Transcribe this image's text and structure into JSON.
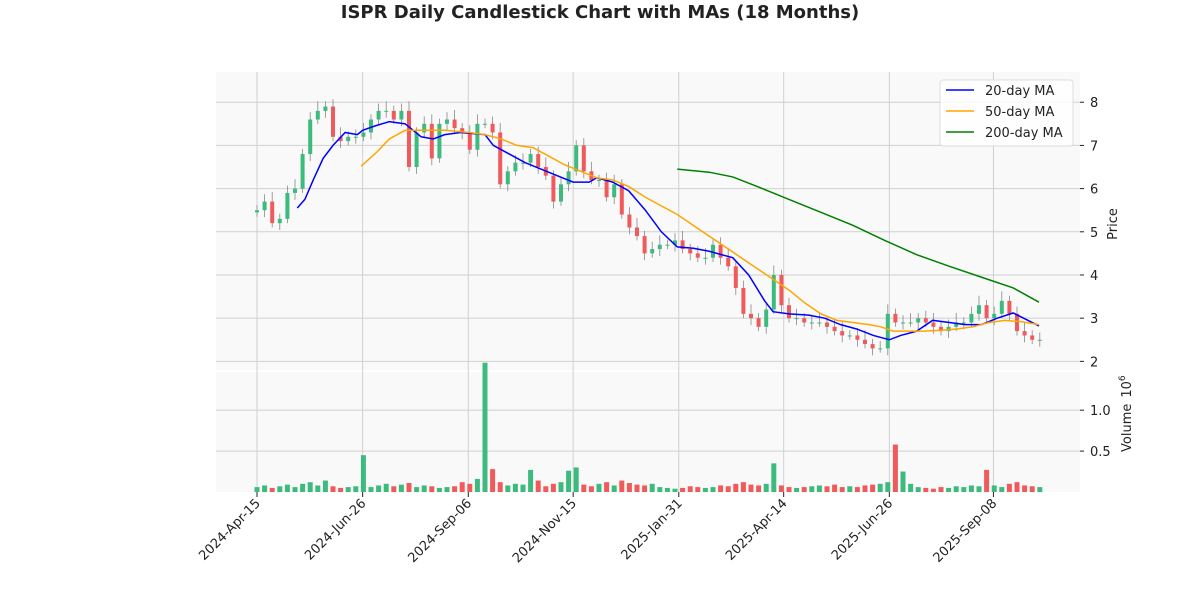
{
  "chart_data": {
    "type": "candlestick",
    "title": "ISPR Daily Candlestick Chart with MAs (18 Months)",
    "price_axis": {
      "label": "Price",
      "ylim": [
        1.8,
        8.7
      ],
      "ticks": [
        2,
        3,
        4,
        5,
        6,
        7,
        8
      ]
    },
    "volume_axis": {
      "label": "Volume",
      "multiplier": "10",
      "exponent": "6",
      "ylim": [
        0,
        1.98
      ],
      "ticks": [
        0.5,
        1.0
      ],
      "tick_labels": [
        "0.5",
        "1.0"
      ]
    },
    "x_ticks": [
      {
        "label": "2024-Apr-15",
        "index": 0
      },
      {
        "label": "2024-Jun-26",
        "index": 13.9
      },
      {
        "label": "2024-Sep-06",
        "index": 27.8
      },
      {
        "label": "2024-Nov-15",
        "index": 41.6
      },
      {
        "label": "2025-Jan-31",
        "index": 55.5
      },
      {
        "label": "2025-Apr-14",
        "index": 69.3
      },
      {
        "label": "2025-Jun-26",
        "index": 83.2
      },
      {
        "label": "2025-Sep-08",
        "index": 96.9
      }
    ],
    "grid": true,
    "legend": {
      "placement": "top-right",
      "entries": [
        {
          "name": "20-day MA",
          "color": "#0000ff"
        },
        {
          "name": "50-day MA",
          "color": "#ffa500"
        },
        {
          "name": "200-day MA",
          "color": "#008000"
        }
      ]
    },
    "colors": {
      "up": "#3dbb7f",
      "down": "#f05a5a",
      "wick": "#888888"
    },
    "closes": [
      5.5,
      5.7,
      5.2,
      5.3,
      5.9,
      6.0,
      6.8,
      7.6,
      7.8,
      7.9,
      7.2,
      7.1,
      7.2,
      7.2,
      7.3,
      7.6,
      7.8,
      7.8,
      7.6,
      7.8,
      6.5,
      7.3,
      7.5,
      6.7,
      7.5,
      7.6,
      7.4,
      7.3,
      6.9,
      7.5,
      7.5,
      7.3,
      6.1,
      6.4,
      6.6,
      6.6,
      6.8,
      6.5,
      6.3,
      5.7,
      6.1,
      6.4,
      7.0,
      6.4,
      6.2,
      6.2,
      5.8,
      6.1,
      5.4,
      5.1,
      4.9,
      4.5,
      4.6,
      4.7,
      4.7,
      4.8,
      4.6,
      4.5,
      4.4,
      4.4,
      4.7,
      4.4,
      4.2,
      3.7,
      3.1,
      3.0,
      2.8,
      3.2,
      4.0,
      3.3,
      3.0,
      3.0,
      2.9,
      2.9,
      2.9,
      2.8,
      2.7,
      2.6,
      2.6,
      2.5,
      2.4,
      2.3,
      2.3,
      3.1,
      2.9,
      2.9,
      2.9,
      3.0,
      2.9,
      2.8,
      2.7,
      2.8,
      2.9,
      2.9,
      3.1,
      3.3,
      3.0,
      3.1,
      3.4,
      3.1,
      2.7,
      2.6,
      2.5,
      2.5
    ],
    "volumes": [
      0.06,
      0.08,
      0.05,
      0.07,
      0.09,
      0.06,
      0.1,
      0.12,
      0.08,
      0.14,
      0.07,
      0.05,
      0.06,
      0.07,
      0.45,
      0.06,
      0.08,
      0.1,
      0.07,
      0.09,
      0.11,
      0.06,
      0.08,
      0.07,
      0.05,
      0.06,
      0.07,
      0.12,
      0.1,
      0.16,
      1.58,
      0.28,
      0.12,
      0.08,
      0.1,
      0.09,
      0.27,
      0.14,
      0.07,
      0.1,
      0.12,
      0.26,
      0.3,
      0.09,
      0.07,
      0.1,
      0.12,
      0.08,
      0.14,
      0.11,
      0.09,
      0.08,
      0.1,
      0.06,
      0.05,
      0.04,
      0.05,
      0.07,
      0.06,
      0.05,
      0.06,
      0.08,
      0.07,
      0.1,
      0.12,
      0.09,
      0.08,
      0.1,
      0.35,
      0.08,
      0.06,
      0.05,
      0.06,
      0.07,
      0.08,
      0.07,
      0.09,
      0.06,
      0.07,
      0.06,
      0.08,
      0.09,
      0.1,
      0.12,
      0.58,
      0.25,
      0.1,
      0.06,
      0.05,
      0.04,
      0.06,
      0.05,
      0.07,
      0.06,
      0.08,
      0.07,
      0.27,
      0.08,
      0.06,
      0.1,
      0.12,
      0.08,
      0.07,
      0.06
    ],
    "ma20": [
      [
        5.3,
        5.55
      ],
      [
        6.3,
        5.75
      ],
      [
        7.4,
        6.2
      ],
      [
        8.7,
        6.7
      ],
      [
        10,
        7.0
      ],
      [
        11.6,
        7.3
      ],
      [
        13.2,
        7.25
      ],
      [
        13.9,
        7.35
      ],
      [
        15.5,
        7.45
      ],
      [
        17.4,
        7.55
      ],
      [
        19.5,
        7.5
      ],
      [
        21.6,
        7.2
      ],
      [
        23.2,
        7.15
      ],
      [
        24.7,
        7.25
      ],
      [
        26.8,
        7.3
      ],
      [
        30,
        7.25
      ],
      [
        31.1,
        7.0
      ],
      [
        33.2,
        6.8
      ],
      [
        35.3,
        6.6
      ],
      [
        37.4,
        6.45
      ],
      [
        39.5,
        6.3
      ],
      [
        41.6,
        6.15
      ],
      [
        43.7,
        6.15
      ],
      [
        44.7,
        6.25
      ],
      [
        46.8,
        6.15
      ],
      [
        48.9,
        5.95
      ],
      [
        51.1,
        5.5
      ],
      [
        53.2,
        5.0
      ],
      [
        55.3,
        4.65
      ],
      [
        57.4,
        4.62
      ],
      [
        59.5,
        4.55
      ],
      [
        60.5,
        4.5
      ],
      [
        62.6,
        4.4
      ],
      [
        64.7,
        4.0
      ],
      [
        66.8,
        3.4
      ],
      [
        67.9,
        3.15
      ],
      [
        70,
        3.1
      ],
      [
        72.6,
        3.07
      ],
      [
        74.7,
        3.0
      ],
      [
        76.8,
        2.85
      ],
      [
        78.9,
        2.75
      ],
      [
        81.1,
        2.6
      ],
      [
        83.2,
        2.5
      ],
      [
        84.7,
        2.6
      ],
      [
        86.8,
        2.7
      ],
      [
        88.9,
        2.95
      ],
      [
        91.1,
        2.9
      ],
      [
        93.2,
        2.85
      ],
      [
        95.3,
        2.85
      ],
      [
        97.4,
        3.0
      ],
      [
        99.5,
        3.12
      ],
      [
        102.9,
        2.82
      ]
    ],
    "ma50": [
      [
        13.7,
        6.52
      ],
      [
        15.8,
        6.85
      ],
      [
        17.4,
        7.15
      ],
      [
        19.5,
        7.35
      ],
      [
        21.6,
        7.35
      ],
      [
        24.7,
        7.35
      ],
      [
        27.9,
        7.3
      ],
      [
        30,
        7.25
      ],
      [
        32.1,
        7.15
      ],
      [
        34.2,
        7.0
      ],
      [
        36.3,
        6.95
      ],
      [
        38.4,
        6.75
      ],
      [
        40.5,
        6.55
      ],
      [
        42.6,
        6.4
      ],
      [
        44.7,
        6.25
      ],
      [
        46.8,
        6.2
      ],
      [
        48.9,
        6.05
      ],
      [
        51.1,
        5.8
      ],
      [
        53.2,
        5.6
      ],
      [
        55.3,
        5.4
      ],
      [
        57.4,
        5.15
      ],
      [
        59.5,
        4.9
      ],
      [
        61.6,
        4.65
      ],
      [
        63.7,
        4.4
      ],
      [
        65.8,
        4.15
      ],
      [
        67.9,
        3.9
      ],
      [
        70,
        3.65
      ],
      [
        72.1,
        3.35
      ],
      [
        74.2,
        3.1
      ],
      [
        76.3,
        2.95
      ],
      [
        78.4,
        2.9
      ],
      [
        80.5,
        2.85
      ],
      [
        82.1,
        2.8
      ],
      [
        83.7,
        2.7
      ],
      [
        85.8,
        2.7
      ],
      [
        87.9,
        2.7
      ],
      [
        90,
        2.72
      ],
      [
        92.1,
        2.75
      ],
      [
        94.2,
        2.8
      ],
      [
        96.3,
        2.9
      ],
      [
        98.4,
        2.95
      ],
      [
        100.5,
        2.92
      ],
      [
        102.9,
        2.85
      ]
    ],
    "ma200": [
      [
        55.3,
        6.45
      ],
      [
        59.5,
        6.38
      ],
      [
        62.6,
        6.27
      ],
      [
        65.8,
        6.05
      ],
      [
        70,
        5.75
      ],
      [
        74.2,
        5.45
      ],
      [
        78.4,
        5.15
      ],
      [
        82.6,
        4.8
      ],
      [
        86.8,
        4.47
      ],
      [
        91.1,
        4.2
      ],
      [
        95.3,
        3.95
      ],
      [
        99.5,
        3.7
      ],
      [
        102.9,
        3.37
      ]
    ]
  }
}
